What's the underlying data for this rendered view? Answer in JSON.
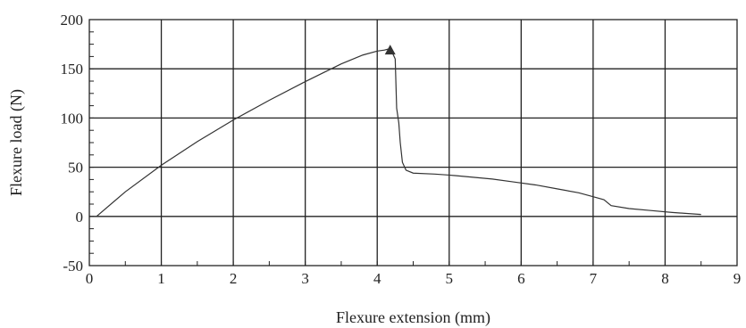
{
  "chart_data": {
    "type": "line",
    "title": "",
    "xlabel": "Flexure extension (mm)",
    "ylabel": "Flexure load (N)",
    "xlim": [
      0,
      9
    ],
    "ylim": [
      -50,
      200
    ],
    "x_ticks": [
      0,
      1,
      2,
      3,
      4,
      5,
      6,
      7,
      8,
      9
    ],
    "y_ticks": [
      -50,
      0,
      50,
      100,
      150,
      200
    ],
    "grid": true,
    "legend": "none",
    "colors": {
      "line": "#333333",
      "grid": "#222222",
      "marker": "#333333"
    },
    "series": [
      {
        "x": [
          0.1,
          0.5,
          1.0,
          1.5,
          2.0,
          2.5,
          3.0,
          3.5,
          3.8,
          4.0,
          4.1,
          4.15,
          4.2,
          4.25,
          4.27,
          4.3,
          4.32,
          4.35,
          4.4,
          4.5,
          4.8,
          5.0,
          5.3,
          5.6,
          5.9,
          6.2,
          6.5,
          6.8,
          7.0,
          7.15,
          7.25,
          7.5,
          7.8,
          8.1,
          8.3,
          8.5
        ],
        "y": [
          0,
          25,
          52,
          76,
          98,
          118,
          137,
          155,
          164,
          168,
          169,
          170,
          168,
          160,
          110,
          95,
          75,
          55,
          47,
          44,
          43,
          42,
          40,
          38,
          35,
          32,
          28,
          24,
          20,
          17,
          11,
          8,
          6,
          4,
          3,
          2
        ]
      }
    ],
    "annotations": [
      {
        "type": "triangle-marker",
        "x": 4.18,
        "y": 170
      }
    ]
  }
}
